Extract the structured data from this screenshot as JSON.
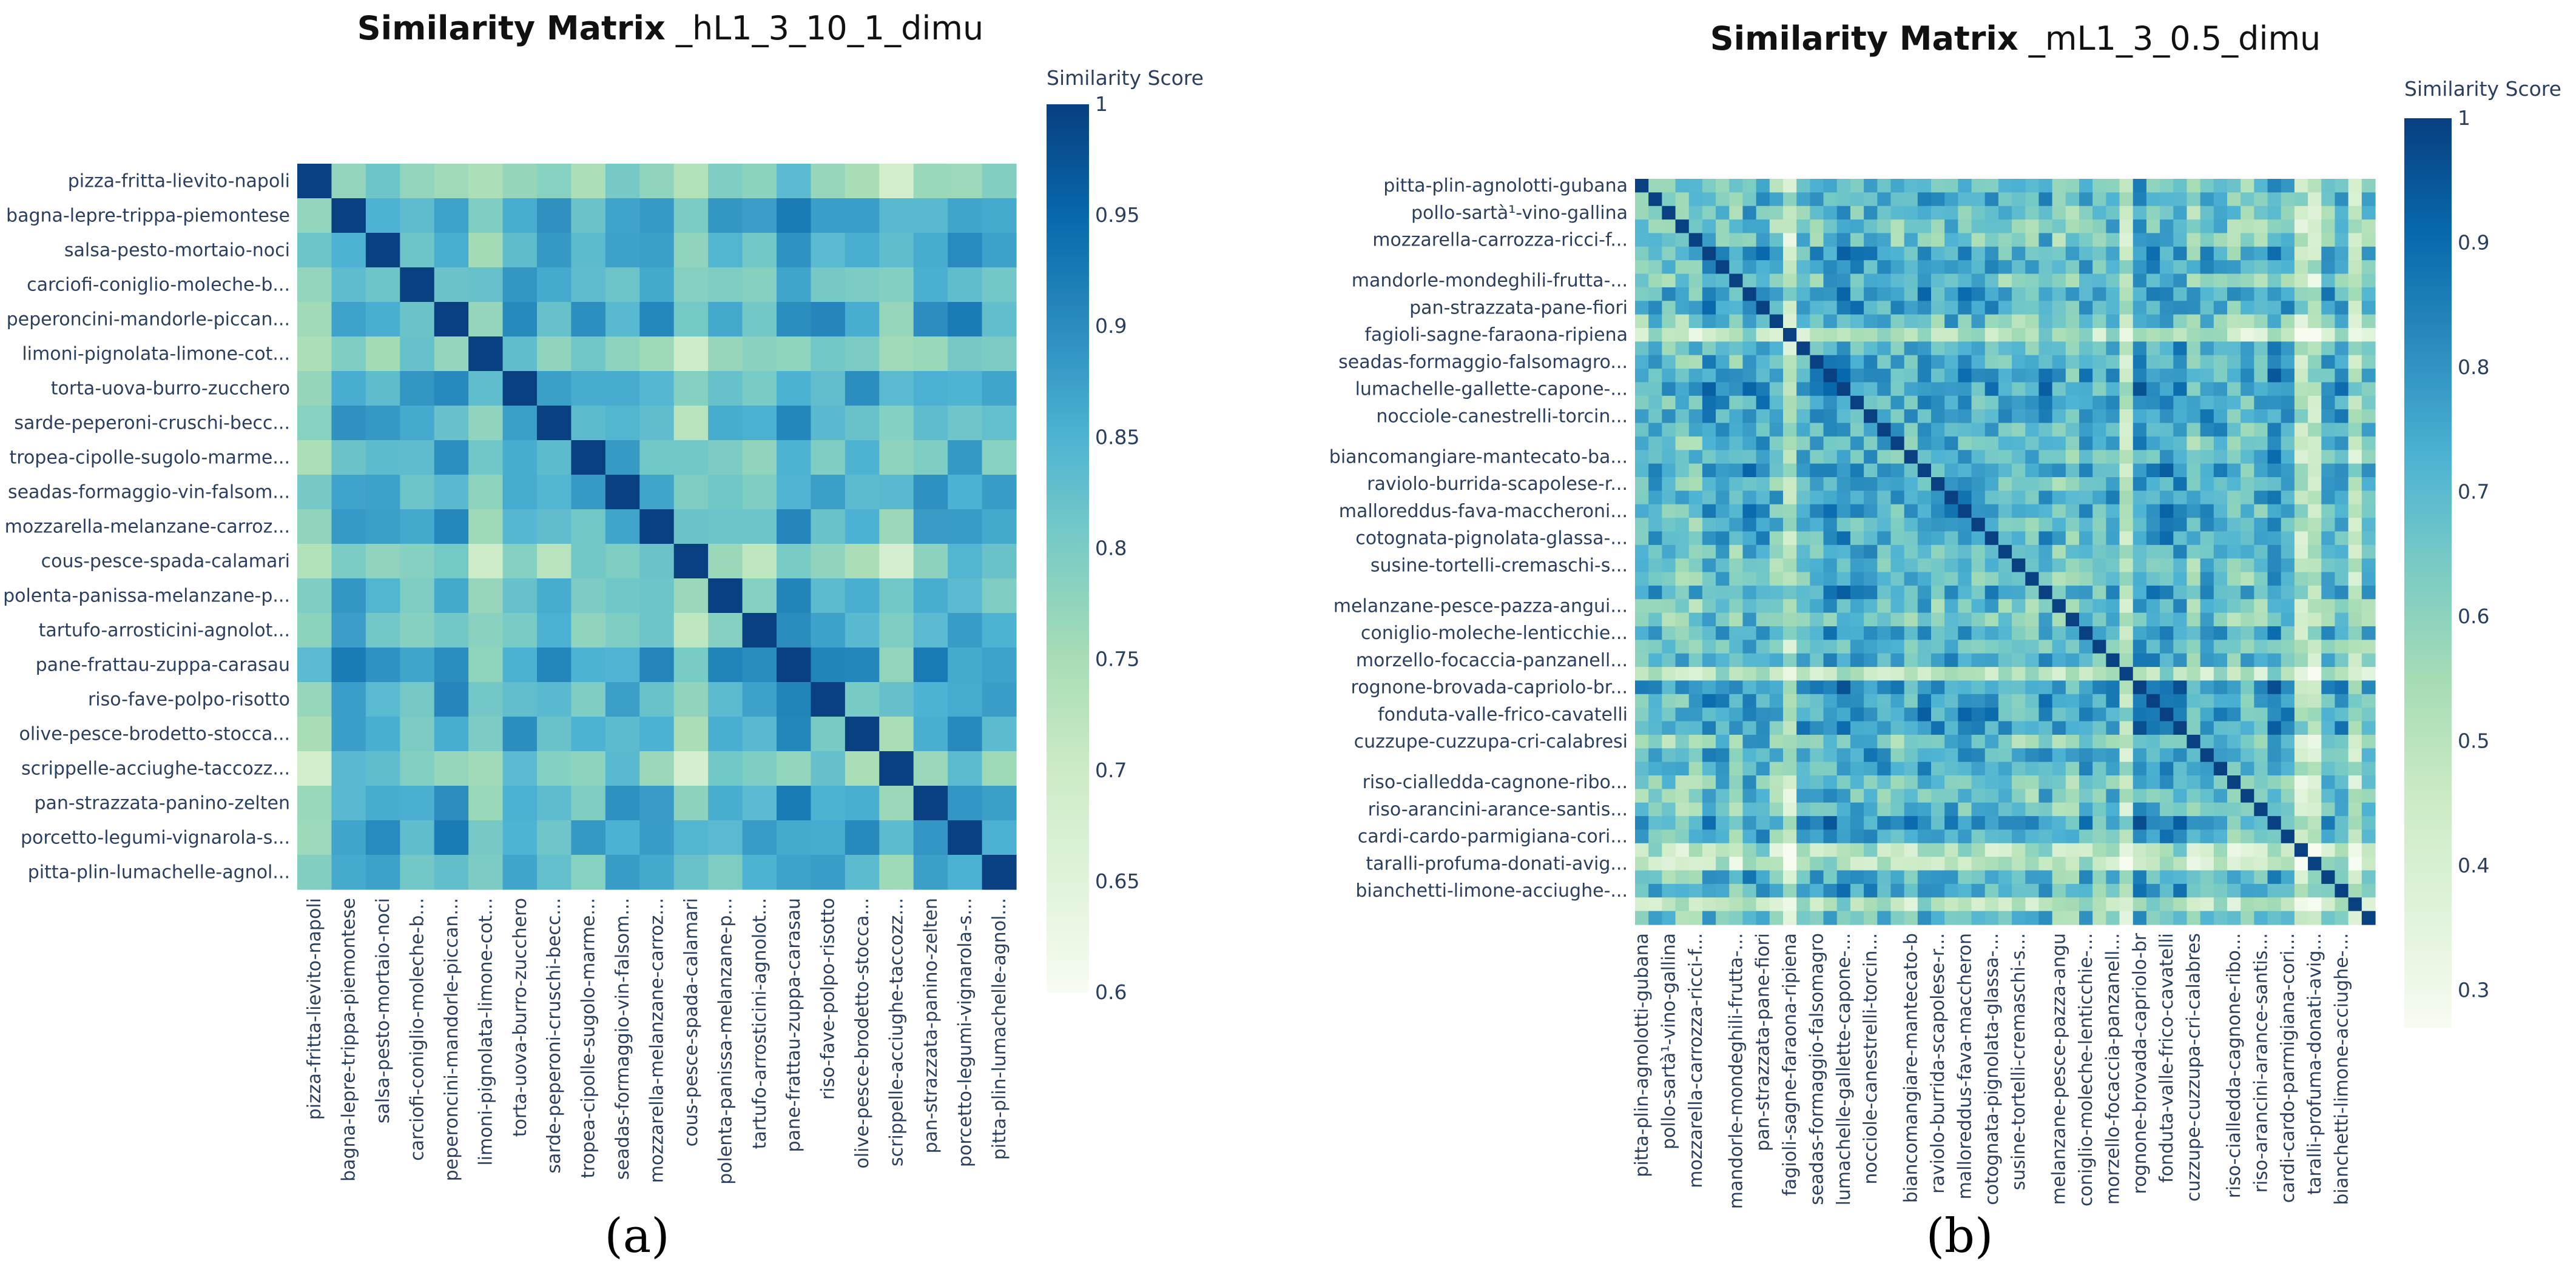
{
  "chart_data": [
    {
      "type": "heatmap",
      "panel_label": "(a)",
      "title_bold": "Similarity Matrix",
      "title_rest": " _hL1_3_10_1_dimu",
      "colorbar_title": "Similarity Score",
      "zmin": 0.6,
      "zmax": 1,
      "colorbar_ticks": [
        "1",
        "0.95",
        "0.9",
        "0.85",
        "0.8",
        "0.75",
        "0.7",
        "0.65",
        "0.6"
      ],
      "labels": [
        "pizza-fritta-lievito-napoli",
        "bagna-lepre-trippa-piemontese",
        "salsa-pesto-mortaio-noci",
        "carciofi-coniglio-moleche-b...",
        "peperoncini-mandorle-piccan...",
        "limoni-pignolata-limone-cot...",
        "torta-uova-burro-zucchero",
        "sarde-peperoni-cruschi-becc...",
        "tropea-cipolle-sugolo-marme...",
        "seadas-formaggio-vin-falsom...",
        "mozzarella-melanzane-carroz...",
        "cous-pesce-spada-calamari",
        "polenta-panissa-melanzane-p...",
        "tartufo-arrosticini-agnolot...",
        "pane-frattau-zuppa-carasau",
        "riso-fave-polpo-risotto",
        "olive-pesce-brodetto-stocca...",
        "scrippelle-acciughe-taccozz...",
        "pan-strazzata-panino-zelten",
        "porcetto-legumi-vignarola-s...",
        "pitta-plin-lumachelle-agnol..."
      ]
    },
    {
      "type": "heatmap",
      "panel_label": "(b)",
      "title_bold": "Similarity Matrix",
      "title_rest": " _mL1_3_0.5_dimu",
      "colorbar_title": "Similarity Score",
      "zmin": 0.27,
      "zmax": 1,
      "n_cells": 55,
      "colorbar_ticks": [
        "1",
        "0.9",
        "0.8",
        "0.7",
        "0.6",
        "0.5",
        "0.4",
        "0.3"
      ],
      "labels": [
        "pitta-plin-agnolotti-gubana",
        "pollo-sartà¹-vino-gallina",
        "mozzarella-carrozza-ricci-f...",
        "mandorle-mondeghili-frutta-...",
        "pan-strazzata-pane-fiori",
        "fagioli-sagne-faraona-ripiena",
        "seadas-formaggio-falsomagro...",
        "lumachelle-gallette-capone-...",
        "nocciole-canestrelli-torcin...",
        "biancomangiare-mantecato-ba...",
        "raviolo-burrida-scapolese-r...",
        "malloreddus-fava-maccheroni...",
        "cotognata-pignolata-glassa-...",
        "susine-tortelli-cremaschi-s...",
        "melanzane-pesce-pazza-angui...",
        "coniglio-moleche-lenticchie...",
        "morzello-focaccia-panzanell...",
        "rognone-brovada-capriolo-br...",
        "fonduta-valle-frico-cavatelli",
        "cuzzupe-cuzzupa-cri-calabresi",
        "riso-cialledda-cagnone-ribo...",
        "riso-arancini-arance-santis...",
        "cardi-cardo-parmigiana-cori...",
        "taralli-profuma-donati-avig...",
        "bianchetti-limone-acciughe-..."
      ],
      "x_labels": [
        "pitta-plin-agnolotti-gubana",
        "pollo-sartà¹-vino-gallina",
        "mozzarella-carrozza-ricci-f...",
        "mandorle-mondeghili-frutta-...",
        "pan-strazzata-pane-fiori",
        "fagioli-sagne-faraona-ripiena",
        "seadas-formaggio-falsomagro",
        "lumachelle-gallette-capone-...",
        "nocciole-canestrelli-torcin...",
        "biancomangiare-mantecato-b",
        "raviolo-burrida-scapolese-r...",
        "malloreddus-fava-maccheron",
        "cotognata-pignolata-glassa-...",
        "susine-tortelli-cremaschi-s...",
        "melanzane-pesce-pazza-angu",
        "coniglio-moleche-lenticchie-...",
        "morzello-focaccia-panzanell...",
        "rognone-brovada-capriolo-br",
        "fonduta-valle-frico-cavatelli",
        "cuzzupe-cuzzupa-cri-calabres",
        "riso-cialledda-cagnone-ribo...",
        "riso-arancini-arance-santis...",
        "cardi-cardo-parmigiana-cori...",
        "taralli-profuma-donati-avig...",
        "bianchetti-limone-acciughe-..."
      ]
    }
  ]
}
